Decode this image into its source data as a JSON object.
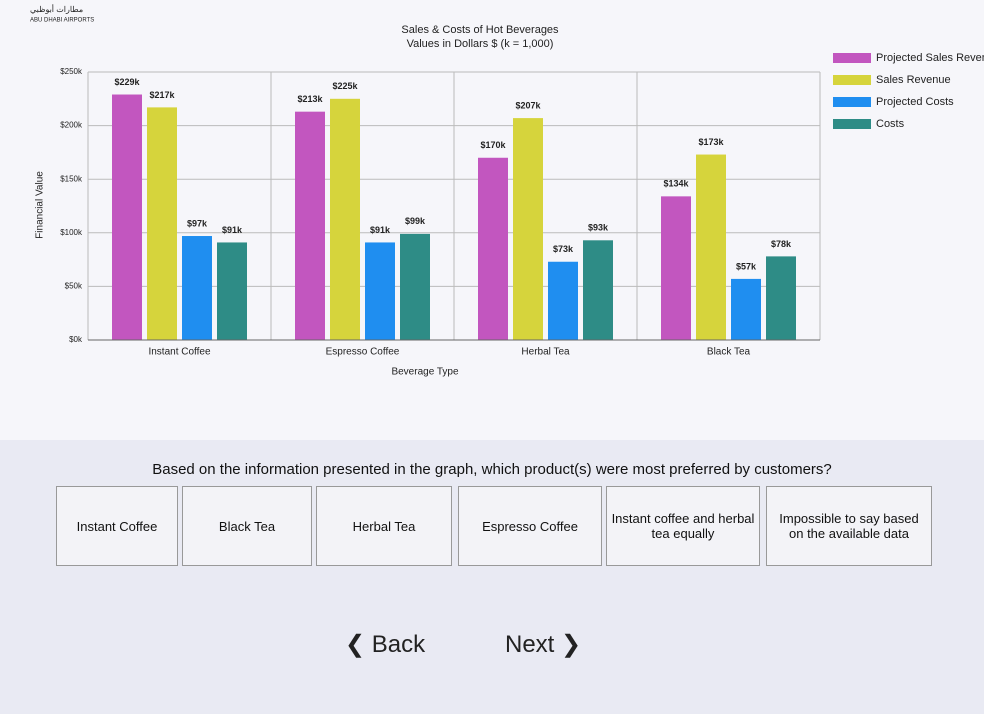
{
  "logo": {
    "arabic": "مطارات أبوظبي",
    "name": "ABU DHABI AIRPORTS"
  },
  "chart_data": {
    "type": "bar",
    "title": "Sales & Costs of Hot Beverages",
    "subtitle": "Values in Dollars $ (k = 1,000)",
    "x_label": "Beverage Type",
    "y_label": "Financial Value",
    "categories": [
      "Instant Coffee",
      "Espresso Coffee",
      "Herbal Tea",
      "Black Tea"
    ],
    "series": [
      {
        "name": "Projected Sales Revenue",
        "color": "#c256bf",
        "values": [
          229,
          213,
          170,
          134
        ],
        "value_labels": [
          "$229k",
          "$213k",
          "$170k",
          "$134k"
        ]
      },
      {
        "name": "Sales Revenue",
        "color": "#d6d43c",
        "values": [
          217,
          225,
          207,
          173
        ],
        "value_labels": [
          "$217k",
          "$225k",
          "$207k",
          "$173k"
        ]
      },
      {
        "name": "Projected Costs",
        "color": "#1f8ef0",
        "values": [
          97,
          91,
          73,
          57
        ],
        "value_labels": [
          "$97k",
          "$91k",
          "$73k",
          "$57k"
        ]
      },
      {
        "name": "Costs",
        "color": "#2e8c86",
        "values": [
          91,
          99,
          93,
          78
        ],
        "value_labels": [
          "$91k",
          "$99k",
          "$93k",
          "$78k"
        ]
      }
    ],
    "ylim": [
      0,
      250
    ],
    "yticks": [
      {
        "value": 0,
        "label": "$0k"
      },
      {
        "value": 50,
        "label": "$50k"
      },
      {
        "value": 100,
        "label": "$100k"
      },
      {
        "value": 150,
        "label": "$150k"
      },
      {
        "value": 200,
        "label": "$200k"
      },
      {
        "value": 250,
        "label": "$250k"
      }
    ],
    "grid": true,
    "legend": "right"
  },
  "question": "Based on the information presented in the graph, which product(s) were most preferred by customers?",
  "options": [
    "Instant Coffee",
    "Black Tea",
    "Herbal Tea",
    "Espresso Coffee",
    "Instant coffee and herbal tea equally",
    "Impossible to say based on the available data"
  ],
  "nav": {
    "back": "Back",
    "next": "Next"
  }
}
